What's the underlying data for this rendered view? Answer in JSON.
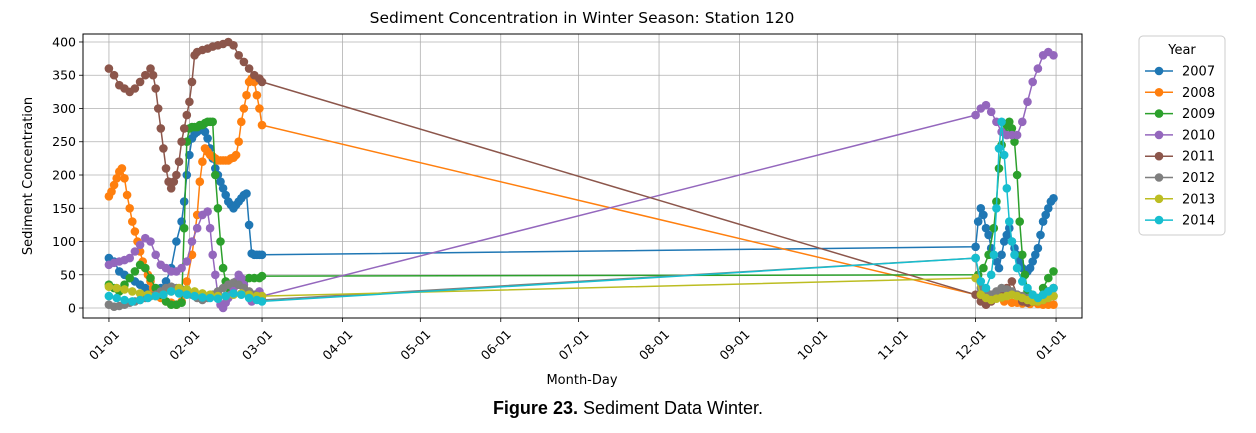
{
  "caption": {
    "label": "Figure 23.",
    "text": " Sediment Data Winter."
  },
  "chart_data": {
    "type": "line",
    "title": "Sediment Concentration in Winter Season: Station 120",
    "xlabel": "Month-Day",
    "ylabel": "Sediment Concentration",
    "ylim": [
      -15,
      412
    ],
    "xlim": [
      -10,
      375
    ],
    "grid": true,
    "legend": {
      "title": "Year",
      "placement": "outside-right"
    },
    "x_ticks": [
      {
        "label": "01-01",
        "day": 0
      },
      {
        "label": "02-01",
        "day": 31
      },
      {
        "label": "03-01",
        "day": 59
      },
      {
        "label": "04-01",
        "day": 90
      },
      {
        "label": "05-01",
        "day": 120
      },
      {
        "label": "06-01",
        "day": 151
      },
      {
        "label": "07-01",
        "day": 181
      },
      {
        "label": "08-01",
        "day": 212
      },
      {
        "label": "09-01",
        "day": 243
      },
      {
        "label": "10-01",
        "day": 273
      },
      {
        "label": "11-01",
        "day": 304
      },
      {
        "label": "12-01",
        "day": 334
      },
      {
        "label": "01-01",
        "day": 365
      }
    ],
    "y_ticks": [
      0,
      50,
      100,
      150,
      200,
      250,
      300,
      350,
      400
    ],
    "series": [
      {
        "name": "2007",
        "color": "#1f77b4",
        "x": [
          0,
          2,
          4,
          6,
          8,
          10,
          12,
          14,
          16,
          18,
          20,
          22,
          24,
          26,
          28,
          29,
          30,
          31,
          32,
          33,
          34,
          35,
          36,
          37,
          38,
          39,
          40,
          41,
          42,
          43,
          44,
          45,
          46,
          47,
          48,
          49,
          50,
          51,
          52,
          53,
          54,
          55,
          56,
          57,
          58,
          59,
          334,
          335,
          336,
          337,
          338,
          339,
          340,
          341,
          342,
          343,
          344,
          345,
          346,
          347,
          348,
          349,
          350,
          351,
          352,
          353,
          354,
          355,
          356,
          357,
          358,
          359,
          360,
          361,
          362,
          363,
          364
        ],
        "y": [
          75,
          70,
          55,
          50,
          45,
          40,
          35,
          30,
          25,
          20,
          30,
          40,
          60,
          100,
          130,
          160,
          200,
          230,
          255,
          262,
          265,
          268,
          270,
          265,
          255,
          240,
          225,
          210,
          200,
          190,
          180,
          170,
          160,
          155,
          150,
          155,
          160,
          165,
          170,
          172,
          125,
          82,
          80,
          80,
          80,
          80,
          92,
          130,
          150,
          140,
          120,
          110,
          90,
          80,
          70,
          60,
          80,
          100,
          110,
          120,
          100,
          90,
          80,
          70,
          60,
          50,
          55,
          60,
          70,
          80,
          90,
          110,
          130,
          140,
          150,
          160,
          165
        ]
      },
      {
        "name": "2008",
        "color": "#ff7f0e",
        "x": [
          0,
          1,
          2,
          3,
          4,
          5,
          6,
          7,
          8,
          9,
          10,
          11,
          12,
          13,
          14,
          15,
          16,
          17,
          18,
          20,
          22,
          24,
          26,
          28,
          30,
          32,
          34,
          35,
          36,
          37,
          38,
          39,
          40,
          41,
          42,
          43,
          44,
          45,
          46,
          47,
          48,
          49,
          50,
          51,
          52,
          53,
          54,
          55,
          56,
          57,
          58,
          59,
          345,
          348,
          350,
          352,
          355,
          358,
          360,
          362,
          364
        ],
        "y": [
          168,
          175,
          185,
          195,
          205,
          210,
          195,
          170,
          150,
          130,
          115,
          100,
          85,
          70,
          60,
          50,
          40,
          30,
          20,
          15,
          10,
          8,
          5,
          10,
          40,
          80,
          140,
          190,
          220,
          240,
          235,
          230,
          228,
          225,
          222,
          222,
          222,
          222,
          222,
          225,
          226,
          230,
          250,
          280,
          300,
          320,
          340,
          345,
          340,
          320,
          300,
          275,
          10,
          8,
          8,
          7,
          6,
          6,
          5,
          5,
          5
        ]
      },
      {
        "name": "2009",
        "color": "#2ca02c",
        "x": [
          0,
          2,
          4,
          6,
          8,
          10,
          12,
          14,
          16,
          18,
          20,
          22,
          24,
          26,
          28,
          29,
          30,
          31,
          32,
          33,
          34,
          35,
          36,
          37,
          38,
          39,
          40,
          41,
          42,
          43,
          44,
          45,
          46,
          47,
          48,
          50,
          52,
          54,
          56,
          58,
          59,
          335,
          337,
          339,
          341,
          342,
          343,
          344,
          345,
          346,
          347,
          348,
          349,
          350,
          351,
          352,
          353,
          354,
          356,
          358,
          360,
          362,
          364
        ],
        "y": [
          35,
          30,
          25,
          35,
          45,
          55,
          65,
          60,
          45,
          30,
          20,
          10,
          5,
          5,
          8,
          120,
          250,
          270,
          272,
          272,
          272,
          275,
          275,
          278,
          280,
          280,
          280,
          200,
          150,
          100,
          60,
          40,
          30,
          25,
          30,
          35,
          40,
          45,
          45,
          45,
          48,
          50,
          60,
          80,
          120,
          160,
          210,
          245,
          265,
          275,
          280,
          270,
          250,
          200,
          130,
          80,
          50,
          25,
          10,
          15,
          30,
          45,
          55
        ]
      },
      {
        "name": "2010",
        "color": "#9467bd",
        "x": [
          0,
          2,
          4,
          6,
          8,
          10,
          12,
          14,
          16,
          18,
          20,
          22,
          24,
          26,
          28,
          30,
          32,
          34,
          36,
          38,
          39,
          40,
          41,
          42,
          43,
          44,
          45,
          46,
          47,
          48,
          49,
          50,
          51,
          52,
          53,
          54,
          55,
          56,
          57,
          58,
          59,
          334,
          336,
          338,
          340,
          342,
          344,
          346,
          348,
          350,
          352,
          354,
          356,
          358,
          360,
          362,
          364
        ],
        "y": [
          65,
          68,
          70,
          72,
          75,
          85,
          95,
          105,
          100,
          80,
          65,
          60,
          55,
          55,
          60,
          70,
          100,
          120,
          140,
          145,
          120,
          80,
          50,
          20,
          5,
          0,
          8,
          15,
          20,
          30,
          40,
          50,
          45,
          35,
          25,
          20,
          10,
          15,
          20,
          25,
          18,
          290,
          300,
          305,
          295,
          280,
          265,
          260,
          260,
          260,
          280,
          310,
          340,
          360,
          380,
          385,
          380
        ]
      },
      {
        "name": "2011",
        "color": "#8c564b",
        "x": [
          0,
          2,
          4,
          6,
          8,
          10,
          12,
          14,
          16,
          17,
          18,
          19,
          20,
          21,
          22,
          23,
          24,
          25,
          26,
          27,
          28,
          29,
          30,
          31,
          32,
          33,
          34,
          36,
          38,
          40,
          42,
          44,
          46,
          48,
          50,
          52,
          54,
          56,
          58,
          59,
          334,
          336,
          338,
          340,
          342,
          344,
          346,
          348,
          350,
          352,
          354,
          356,
          358,
          360,
          362,
          364
        ],
        "y": [
          360,
          350,
          335,
          330,
          325,
          330,
          340,
          350,
          360,
          350,
          330,
          300,
          270,
          240,
          210,
          190,
          180,
          190,
          200,
          220,
          250,
          270,
          290,
          310,
          340,
          380,
          385,
          388,
          390,
          393,
          395,
          397,
          400,
          395,
          380,
          370,
          360,
          350,
          345,
          340,
          20,
          10,
          5,
          10,
          15,
          20,
          30,
          40,
          20,
          10,
          8,
          10,
          15,
          20,
          25,
          30
        ]
      },
      {
        "name": "2012",
        "color": "#7f7f7f",
        "x": [
          0,
          2,
          4,
          6,
          8,
          10,
          12,
          14,
          16,
          18,
          20,
          22,
          24,
          26,
          28,
          30,
          32,
          34,
          36,
          38,
          40,
          42,
          44,
          46,
          48,
          50,
          52,
          54,
          56,
          58,
          59,
          334,
          336,
          338,
          340,
          342,
          344,
          346,
          348,
          350,
          352,
          354,
          356,
          358,
          360,
          362,
          364
        ],
        "y": [
          5,
          2,
          3,
          5,
          8,
          10,
          12,
          15,
          18,
          20,
          25,
          30,
          32,
          30,
          28,
          25,
          20,
          15,
          12,
          15,
          20,
          25,
          30,
          35,
          38,
          35,
          30,
          25,
          20,
          15,
          12,
          75,
          30,
          25,
          20,
          25,
          30,
          28,
          25,
          20,
          18,
          15,
          12,
          10,
          12,
          15,
          18
        ]
      },
      {
        "name": "2013",
        "color": "#bcbd22",
        "x": [
          0,
          3,
          6,
          9,
          12,
          15,
          18,
          21,
          24,
          27,
          30,
          33,
          36,
          39,
          42,
          45,
          48,
          51,
          54,
          57,
          59,
          334,
          336,
          338,
          340,
          342,
          344,
          346,
          348,
          350,
          352,
          354,
          356,
          358,
          360,
          362,
          364
        ],
        "y": [
          32,
          30,
          28,
          25,
          22,
          20,
          18,
          20,
          25,
          30,
          28,
          25,
          22,
          20,
          18,
          18,
          20,
          22,
          20,
          18,
          18,
          45,
          20,
          15,
          12,
          14,
          16,
          18,
          20,
          18,
          15,
          12,
          10,
          10,
          12,
          15,
          18
        ]
      },
      {
        "name": "2014",
        "color": "#17becf",
        "x": [
          0,
          3,
          6,
          9,
          12,
          15,
          18,
          21,
          24,
          27,
          30,
          33,
          36,
          39,
          42,
          45,
          48,
          51,
          54,
          57,
          59,
          334,
          336,
          338,
          340,
          341,
          342,
          343,
          344,
          345,
          346,
          347,
          348,
          349,
          350,
          352,
          354,
          356,
          358,
          360,
          362,
          364
        ],
        "y": [
          18,
          15,
          12,
          10,
          12,
          15,
          18,
          20,
          25,
          22,
          20,
          18,
          16,
          15,
          14,
          18,
          22,
          20,
          15,
          12,
          10,
          75,
          40,
          30,
          50,
          80,
          150,
          240,
          280,
          230,
          180,
          130,
          100,
          80,
          60,
          40,
          30,
          20,
          15,
          20,
          25,
          30
        ]
      }
    ]
  }
}
